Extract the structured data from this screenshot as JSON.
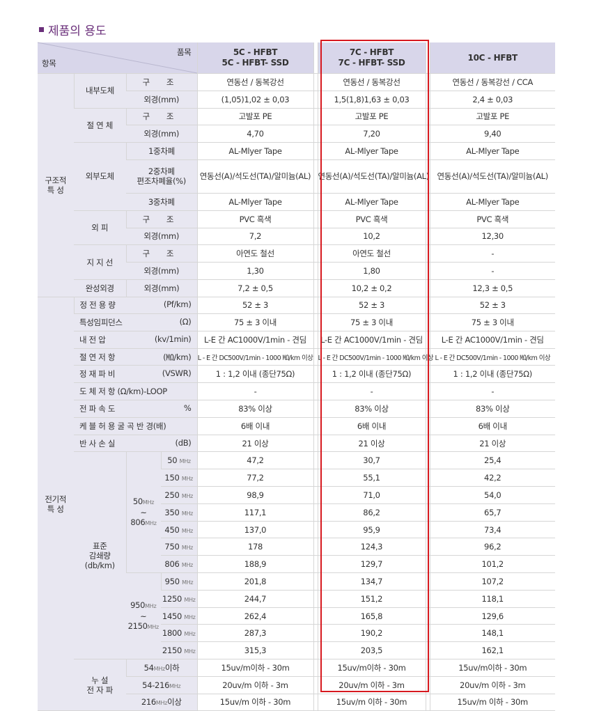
{
  "title": "제품의 용도",
  "header": {
    "item_label": "품목",
    "category_label": "항목",
    "col1": [
      "5C - HFBT",
      "5C - HFBT- SSD"
    ],
    "col2": [
      "7C - HFBT",
      "7C - HFBT- SSD"
    ],
    "col3": "10C - HFBT"
  },
  "groups": {
    "structural": [
      "구조적",
      "특 성"
    ],
    "electrical": [
      "전기적",
      "특 성"
    ]
  },
  "structural_rows": [
    {
      "sub": "내부도체",
      "label": "구 조",
      "v": [
        "연동선 / 동복강선",
        "연동선 / 동복강선",
        "연동선 / 동복강선 / CCA"
      ]
    },
    {
      "label": "외경(mm)",
      "v": [
        "(1,05)1,02 ± 0,03",
        "1,5(1,8)1,63 ± 0,03",
        "2,4 ± 0,03"
      ]
    },
    {
      "sub": "절 연 체",
      "label": "구 조",
      "v": [
        "고발포 PE",
        "고발포 PE",
        "고발포 PE"
      ]
    },
    {
      "label": "외경(mm)",
      "v": [
        "4,70",
        "7,20",
        "9,40"
      ]
    },
    {
      "sub": "외부도체",
      "label": "1중차폐",
      "v": [
        "AL-Mlyer Tape",
        "AL-Mlyer Tape",
        "AL-Mlyer Tape"
      ]
    },
    {
      "label": [
        "2중차폐",
        "편조차폐율(%)"
      ],
      "v": [
        "연동선(A)/석도선(TA)/알미늄(AL)",
        "연동선(A)/석도선(TA)/알미늄(AL)",
        "연동선(A)/석도선(TA)/알미늄(AL)"
      ]
    },
    {
      "label": "3중차폐",
      "v": [
        "AL-Mlyer Tape",
        "AL-Mlyer Tape",
        "AL-Mlyer Tape"
      ]
    },
    {
      "sub": "외 피",
      "label": "구 조",
      "v": [
        "PVC 흑색",
        "PVC 흑색",
        "PVC 흑색"
      ]
    },
    {
      "label": "외경(mm)",
      "v": [
        "7,2",
        "10,2",
        "12,30"
      ]
    },
    {
      "sub": "지 지 선",
      "label": "구 조",
      "v": [
        "아연도 철선",
        "아연도 철선",
        "-"
      ]
    },
    {
      "label": "외경(mm)",
      "v": [
        "1,30",
        "1,80",
        "-"
      ]
    },
    {
      "sub": "완성외경",
      "label": "외경(mm)",
      "v": [
        "7,2 ± 0,5",
        "10,2 ± 0,2",
        "12,3 ± 0,5"
      ]
    }
  ],
  "electrical_rows": [
    {
      "name": "정 전 용 량",
      "unit": "(Pf/km)",
      "v": [
        "52 ± 3",
        "52 ± 3",
        "52 ± 3"
      ]
    },
    {
      "name": "특성임피던스",
      "unit": "(Ω)",
      "v": [
        "75 ± 3 이내",
        "75 ± 3 이내",
        "75 ± 3 이내"
      ]
    },
    {
      "name": "내 전 압",
      "unit": "(kv/1min)",
      "v": [
        "L-E 간 AC1000V/1min - 견딤",
        "L-E 간 AC1000V/1min - 견딤",
        "L-E 간 AC1000V/1min - 견딤"
      ]
    },
    {
      "name": "절 연 저 항",
      "unit": "(㏁/km)",
      "v": [
        "L - E 간 DC500V/1min - 1000 ㏁/km 이상",
        "L - E 간 DC500V/1min - 1000 ㏁/km 이상",
        "L - E 간 DC500V/1min - 1000 ㏁/km 이상"
      ]
    },
    {
      "name": "정 재 파 비",
      "unit": "(VSWR)",
      "v": [
        "1 : 1,2 이내 (종단75Ω)",
        "1 : 1,2 이내 (종단75Ω)",
        "1 : 1,2 이내 (종단75Ω)"
      ]
    },
    {
      "name": "도 체 저 항 (Ω/km)-LOOP",
      "unit": "",
      "v": [
        "-",
        "-",
        "-"
      ]
    },
    {
      "name": "전 파 속 도",
      "unit": "%",
      "v": [
        "83% 이상",
        "83% 이상",
        "83% 이상"
      ]
    },
    {
      "name": "케 블 허 용 굴 곡 반 경(배)",
      "unit": "",
      "v": [
        "6배 이내",
        "6배 이내",
        "6배 이내"
      ]
    },
    {
      "name": "반 사 손 실",
      "unit": "(dB)",
      "v": [
        "21 이상",
        "21 이상",
        "21 이상"
      ]
    }
  ],
  "attenuation": {
    "label": [
      "표준",
      "감쇄량",
      "(db/km)"
    ],
    "band1": {
      "lo": "50",
      "tilde": "~",
      "hi": "806",
      "unit": "MHz"
    },
    "band2": {
      "lo": "950",
      "tilde": "~",
      "hi": "2150",
      "unit": "MHz"
    },
    "mhz": "MHz",
    "rows": [
      {
        "f": "50",
        "v": [
          "47,2",
          "30,7",
          "25,4"
        ]
      },
      {
        "f": "150",
        "v": [
          "77,2",
          "55,1",
          "42,2"
        ]
      },
      {
        "f": "250",
        "v": [
          "98,9",
          "71,0",
          "54,0"
        ]
      },
      {
        "f": "350",
        "v": [
          "117,1",
          "86,2",
          "65,7"
        ]
      },
      {
        "f": "450",
        "v": [
          "137,0",
          "95,9",
          "73,4"
        ]
      },
      {
        "f": "750",
        "v": [
          "178",
          "124,3",
          "96,2"
        ]
      },
      {
        "f": "806",
        "v": [
          "188,9",
          "129,7",
          "101,2"
        ]
      },
      {
        "f": "950",
        "v": [
          "201,8",
          "134,7",
          "107,2"
        ]
      },
      {
        "f": "1250",
        "v": [
          "244,7",
          "151,2",
          "118,1"
        ]
      },
      {
        "f": "1450",
        "v": [
          "262,4",
          "165,8",
          "129,6"
        ]
      },
      {
        "f": "1800",
        "v": [
          "287,3",
          "190,2",
          "148,1"
        ]
      },
      {
        "f": "2150",
        "v": [
          "315,3",
          "203,5",
          "162,1"
        ]
      }
    ]
  },
  "leakage": {
    "label": [
      "누 설",
      "전 자 파"
    ],
    "rows": [
      {
        "range": "54",
        "unit": "MHz",
        "suffix": "이하",
        "v": [
          "15uv/m이하 - 30m",
          "15uv/m이하 - 30m",
          "15uv/m이하 - 30m"
        ]
      },
      {
        "range": "54-216",
        "unit": "MHz",
        "suffix": "",
        "v": [
          "20uv/m 이하 - 3m",
          "20uv/m 이하 - 3m",
          "20uv/m 이하 - 3m"
        ]
      },
      {
        "range": "216",
        "unit": "MHz",
        "suffix": "이상",
        "v": [
          "15uv/m 이하 - 30m",
          "15uv/m 이하 - 30m",
          "15uv/m 이하 - 30m"
        ]
      }
    ]
  },
  "highlight_color": "#d7191f",
  "accent_color": "#6a2f7a"
}
